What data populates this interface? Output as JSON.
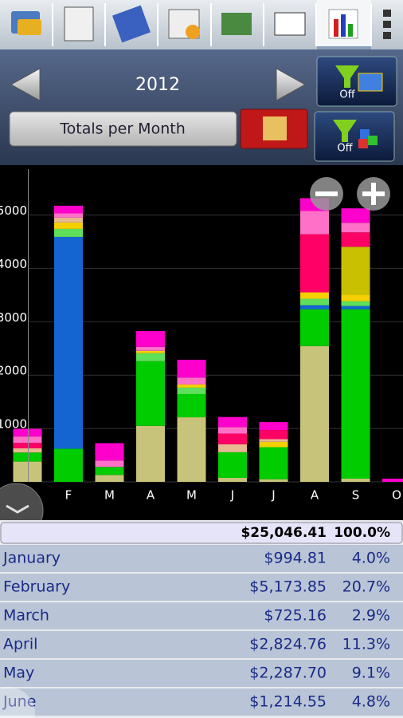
{
  "header": {
    "year": "2012",
    "filter_buttons": [
      "Off",
      "Off"
    ],
    "view_button": "Totals per Month"
  },
  "chart_data": {
    "type": "stacked_bar",
    "categories": [
      null,
      "F",
      "M",
      "A",
      "M",
      "J",
      "J",
      "A",
      "S",
      "O"
    ],
    "series": [
      {
        "color": "#c8c37a",
        "values": [
          380,
          0,
          130,
          1050,
          1210,
          75,
          50,
          2545,
          60,
          0
        ]
      },
      {
        "color": "#00cc00",
        "values": [
          170,
          620,
          150,
          1210,
          435,
          480,
          600,
          690,
          3175,
          0
        ]
      },
      {
        "color": "#1464d2",
        "values": [
          0,
          3970,
          0,
          0,
          0,
          0,
          0,
          75,
          60,
          0
        ]
      },
      {
        "color": "#5ee05a",
        "values": [
          0,
          150,
          0,
          150,
          120,
          0,
          0,
          120,
          90,
          0
        ]
      },
      {
        "color": "#f5d000",
        "values": [
          0,
          120,
          0,
          45,
          60,
          0,
          100,
          120,
          120,
          0
        ]
      },
      {
        "color": "#c8c000",
        "values": [
          0,
          0,
          0,
          0,
          0,
          0,
          0,
          0,
          900,
          0
        ]
      },
      {
        "color": "#e8b890",
        "values": [
          80,
          90,
          0,
          0,
          0,
          150,
          50,
          0,
          0,
          0
        ]
      },
      {
        "color": "#ff0066",
        "values": [
          100,
          0,
          0,
          0,
          0,
          200,
          170,
          1090,
          270,
          0
        ]
      },
      {
        "color": "#ff70c8",
        "values": [
          120,
          80,
          120,
          75,
          130,
          120,
          0,
          435,
          180,
          0
        ]
      },
      {
        "color": "#ff00cc",
        "values": [
          145,
          144,
          325,
          295,
          333,
          190,
          150,
          240,
          270,
          60
        ]
      }
    ],
    "ylim": [
      0,
      5800
    ],
    "yticks": [
      0,
      1000,
      2000,
      3000,
      4000,
      5000
    ],
    "grid": true
  },
  "table": {
    "total": {
      "amount": "$25,046.41",
      "percent": "100.0%"
    },
    "rows": [
      [
        "January",
        "$994.81",
        "4.0%"
      ],
      [
        "February",
        "$5,173.85",
        "20.7%"
      ],
      [
        "March",
        "$725.16",
        "2.9%"
      ],
      [
        "April",
        "$2,824.76",
        "11.3%"
      ],
      [
        "May",
        "$2,287.70",
        "9.1%"
      ],
      [
        "June",
        "$1,214.55",
        "4.8%"
      ]
    ]
  }
}
